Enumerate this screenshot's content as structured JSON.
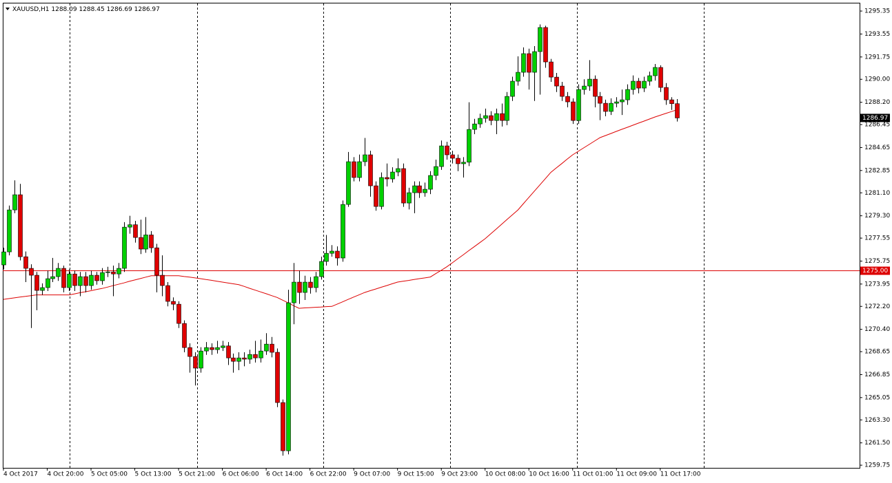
{
  "chart_data": {
    "type": "candlestick",
    "symbol": "XAUUSD,H1",
    "up_color": "#00d000",
    "down_color": "#e00000",
    "wick_color": "#000000",
    "ylim": [
      1259.54,
      1296.0
    ],
    "yticks": [
      1295.35,
      1293.55,
      1291.75,
      {
        "value": 1290,
        "label": "1290.00"
      },
      {
        "value": 1288.2,
        "label": "1288.20"
      },
      1286.45,
      1284.65,
      1282.85,
      {
        "value": 1281.1,
        "label": "1281.10"
      },
      {
        "value": 1279.3,
        "label": "1279.30"
      },
      1277.55,
      1275.75,
      1273.95,
      {
        "value": 1272.2,
        "label": "1272.20"
      },
      {
        "value": 1270.4,
        "label": "1270.40"
      },
      1268.65,
      1266.85,
      1265.05,
      {
        "value": 1263.3,
        "label": "1263.30"
      },
      {
        "value": 1261.5,
        "label": "1261.50"
      },
      1259.75
    ],
    "categories": [
      "4 Oct 2017",
      null,
      null,
      null,
      null,
      null,
      null,
      null,
      "4 Oct 20:00",
      null,
      null,
      null,
      null,
      null,
      null,
      null,
      "5 Oct 05:00",
      null,
      null,
      null,
      null,
      null,
      null,
      null,
      "5 Oct 13:00",
      null,
      null,
      null,
      null,
      null,
      null,
      null,
      "5 Oct 21:00",
      null,
      null,
      null,
      null,
      null,
      null,
      null,
      "6 Oct 06:00",
      null,
      null,
      null,
      null,
      null,
      null,
      null,
      "6 Oct 14:00",
      null,
      null,
      null,
      null,
      null,
      null,
      null,
      "6 Oct 22:00",
      null,
      null,
      null,
      null,
      null,
      null,
      null,
      "9 Oct 07:00",
      null,
      null,
      null,
      null,
      null,
      null,
      null,
      "9 Oct 15:00",
      null,
      null,
      null,
      null,
      null,
      null,
      null,
      "9 Oct 23:00",
      null,
      null,
      null,
      null,
      null,
      null,
      null,
      "10 Oct 08:00",
      null,
      null,
      null,
      null,
      null,
      null,
      null,
      "10 Oct 16:00",
      null,
      null,
      null,
      null,
      null,
      null,
      null,
      "11 Oct 01:00",
      null,
      null,
      null,
      null,
      null,
      null,
      null,
      "11 Oct 09:00",
      null,
      null,
      null,
      null,
      null,
      null,
      null,
      "11 Oct 17:00",
      null,
      null,
      null
    ],
    "open": [
      1275.45,
      1276.47,
      1279.76,
      1280.95,
      1276.09,
      1275.18,
      1274.64,
      1273.45,
      1273.67,
      1274.37,
      1274.53,
      1275.18,
      1273.67,
      1274.74,
      1273.83,
      1274.53,
      1273.83,
      1274.64,
      1274.21,
      1274.85,
      1274.9,
      1274.74,
      1275.18,
      1278.41,
      1278.6,
      1277.6,
      1276.69,
      1277.8,
      1276.79,
      1274.64,
      1273.83,
      1272.59,
      1272.37,
      1270.86,
      1268.97,
      1268.27,
      1267.36,
      1268.7,
      1268.97,
      1268.81,
      1268.97,
      1269.1,
      1268.16,
      1267.89,
      1268.16,
      1268.06,
      1268.43,
      1268.16,
      1268.7,
      1269.24,
      1268.6,
      1264.66,
      1260.88,
      1272.48,
      1274.1,
      1273.29,
      1274.1,
      1273.67,
      1274.53,
      1275.72,
      1276.36,
      1276.53,
      1275.99,
      1280.19,
      1283.54,
      1282.3,
      1283.54,
      1284.08,
      1281.65,
      1280.03,
      1282.3,
      1282.19,
      1282.73,
      1283.0,
      1280.3,
      1281.11,
      1281.65,
      1281.11,
      1281.38,
      1282.46,
      1283.16,
      1284.78,
      1284.08,
      1283.81,
      1283.38,
      1283.5,
      1286.07,
      1286.5,
      1286.94,
      1287.15,
      1286.77,
      1287.31,
      1286.77,
      1288.66,
      1289.85,
      1290.55,
      1292.01,
      1290.55,
      1292.17,
      1294.06,
      1291.36,
      1290.17,
      1289.47,
      1288.66,
      1288.23,
      1286.77,
      1289.2,
      1289.47,
      1290.01,
      1288.66,
      1288.12,
      1287.48,
      1288.12,
      1288.23,
      1288.39,
      1289.2,
      1289.85,
      1289.31,
      1289.85,
      1290.28,
      1290.93,
      1289.36,
      1288.39,
      1288.09
    ],
    "high": [
      1276.8,
      1280.1,
      1282.08,
      1281.8,
      1276.5,
      1275.5,
      1274.9,
      1274.0,
      1275.0,
      1276.0,
      1275.6,
      1275.4,
      1275.1,
      1275.0,
      1274.9,
      1274.9,
      1275.0,
      1274.9,
      1275.2,
      1275.3,
      1275.4,
      1275.6,
      1278.8,
      1279.3,
      1278.9,
      1279.0,
      1279.2,
      1278.1,
      1277.1,
      1276.2,
      1274.1,
      1272.9,
      1272.6,
      1271.1,
      1269.3,
      1268.6,
      1269.0,
      1269.4,
      1269.3,
      1269.5,
      1269.5,
      1269.4,
      1268.5,
      1268.6,
      1268.6,
      1268.8,
      1269.5,
      1269.6,
      1270.1,
      1269.8,
      1268.9,
      1264.9,
      1273.5,
      1275.6,
      1275.0,
      1274.6,
      1274.5,
      1274.9,
      1276.1,
      1277.8,
      1277.0,
      1276.9,
      1280.5,
      1284.3,
      1283.9,
      1284.1,
      1285.4,
      1284.4,
      1282.0,
      1282.7,
      1283.4,
      1283.1,
      1283.8,
      1283.4,
      1281.5,
      1282.0,
      1282.0,
      1281.9,
      1282.8,
      1283.7,
      1285.2,
      1285.1,
      1284.4,
      1284.1,
      1283.9,
      1288.2,
      1286.9,
      1287.3,
      1287.7,
      1287.5,
      1287.7,
      1288.1,
      1289.0,
      1290.2,
      1291.8,
      1292.5,
      1292.4,
      1292.6,
      1294.3,
      1294.2,
      1291.6,
      1290.5,
      1289.8,
      1289.0,
      1288.5,
      1289.6,
      1290.0,
      1291.5,
      1290.3,
      1289.0,
      1288.4,
      1288.5,
      1288.6,
      1289.2,
      1289.6,
      1290.3,
      1290.1,
      1290.2,
      1290.6,
      1291.2,
      1291.1,
      1289.7,
      1288.6,
      1288.45
    ],
    "low": [
      1275.1,
      1276.2,
      1279.5,
      1275.8,
      1274.1,
      1270.5,
      1271.9,
      1273.1,
      1273.4,
      1274.1,
      1274.2,
      1273.3,
      1273.4,
      1273.4,
      1273.0,
      1273.3,
      1273.5,
      1273.9,
      1273.9,
      1274.5,
      1273.0,
      1274.4,
      1274.9,
      1277.9,
      1277.2,
      1276.3,
      1276.4,
      1276.4,
      1273.3,
      1273.0,
      1272.2,
      1271.9,
      1270.5,
      1268.6,
      1267.0,
      1266.0,
      1267.0,
      1268.4,
      1268.4,
      1268.5,
      1268.7,
      1267.6,
      1267.0,
      1267.2,
      1267.5,
      1267.7,
      1267.8,
      1267.8,
      1268.4,
      1268.2,
      1264.3,
      1260.5,
      1260.6,
      1270.8,
      1272.4,
      1272.7,
      1273.2,
      1273.3,
      1274.3,
      1275.4,
      1276.1,
      1275.4,
      1275.7,
      1280.0,
      1282.0,
      1282.0,
      1283.2,
      1280.8,
      1279.7,
      1279.8,
      1281.6,
      1281.9,
      1282.4,
      1280.0,
      1279.8,
      1279.5,
      1280.7,
      1280.8,
      1281.0,
      1282.1,
      1282.9,
      1283.7,
      1283.4,
      1282.8,
      1282.3,
      1283.2,
      1285.7,
      1286.2,
      1286.6,
      1286.4,
      1285.7,
      1286.3,
      1286.4,
      1288.3,
      1289.5,
      1290.2,
      1289.2,
      1288.3,
      1288.8,
      1290.9,
      1289.8,
      1289.0,
      1288.3,
      1287.8,
      1286.5,
      1286.5,
      1288.8,
      1289.1,
      1287.8,
      1286.8,
      1287.1,
      1287.2,
      1287.8,
      1287.2,
      1288.0,
      1288.8,
      1288.9,
      1289.0,
      1289.5,
      1289.9,
      1289.0,
      1288.0,
      1287.6,
      1286.69
    ],
    "close": [
      1276.47,
      1279.76,
      1280.95,
      1276.09,
      1275.18,
      1274.64,
      1273.45,
      1273.67,
      1274.37,
      1274.53,
      1275.18,
      1273.67,
      1274.74,
      1273.83,
      1274.53,
      1273.83,
      1274.64,
      1274.21,
      1274.85,
      1274.9,
      1274.74,
      1275.18,
      1278.41,
      1278.6,
      1277.6,
      1276.69,
      1277.8,
      1276.79,
      1274.64,
      1273.83,
      1272.59,
      1272.37,
      1270.86,
      1268.97,
      1268.27,
      1267.36,
      1268.7,
      1268.97,
      1268.81,
      1268.97,
      1269.1,
      1268.16,
      1267.89,
      1268.16,
      1268.06,
      1268.43,
      1268.16,
      1268.7,
      1269.24,
      1268.6,
      1264.66,
      1260.88,
      1272.48,
      1274.1,
      1273.29,
      1274.1,
      1273.67,
      1274.53,
      1275.72,
      1276.36,
      1276.53,
      1275.99,
      1280.19,
      1283.54,
      1282.3,
      1283.54,
      1284.08,
      1281.65,
      1280.03,
      1282.3,
      1282.19,
      1282.73,
      1283.0,
      1280.3,
      1281.11,
      1281.65,
      1281.11,
      1281.38,
      1282.46,
      1283.16,
      1284.78,
      1284.08,
      1283.81,
      1283.38,
      1283.5,
      1286.07,
      1286.5,
      1286.94,
      1287.15,
      1286.77,
      1287.31,
      1286.77,
      1288.66,
      1289.85,
      1290.55,
      1292.01,
      1290.55,
      1292.17,
      1294.06,
      1291.36,
      1290.17,
      1289.47,
      1288.66,
      1288.23,
      1286.77,
      1289.2,
      1289.47,
      1290.01,
      1288.66,
      1288.12,
      1287.48,
      1288.12,
      1288.23,
      1288.39,
      1289.2,
      1289.85,
      1289.31,
      1289.85,
      1290.28,
      1290.93,
      1289.36,
      1288.39,
      1288.09,
      1286.97
    ],
    "ma": {
      "color": "#dd0000",
      "values": [
        1272.75,
        1272.81,
        1272.87,
        1272.93,
        1272.98,
        1273.04,
        1273.1,
        1273.1,
        1273.1,
        1273.1,
        1273.1,
        1273.1,
        1273.1,
        1273.18,
        1273.27,
        1273.35,
        1273.43,
        1273.52,
        1273.6,
        1273.71,
        1273.82,
        1273.93,
        1274.04,
        1274.16,
        1274.27,
        1274.38,
        1274.49,
        1274.6,
        1274.6,
        1274.6,
        1274.6,
        1274.6,
        1274.6,
        1274.54,
        1274.49,
        1274.43,
        1274.37,
        1274.3,
        1274.24,
        1274.17,
        1274.1,
        1274.04,
        1273.97,
        1273.9,
        1273.76,
        1273.61,
        1273.47,
        1273.33,
        1273.19,
        1273.04,
        1272.9,
        1272.69,
        1272.48,
        1272.26,
        1272.05,
        1272.08,
        1272.1,
        1272.13,
        1272.15,
        1272.18,
        1272.2,
        1272.38,
        1272.56,
        1272.75,
        1272.93,
        1273.11,
        1273.29,
        1273.43,
        1273.56,
        1273.7,
        1273.83,
        1273.97,
        1274.1,
        1274.17,
        1274.23,
        1274.3,
        1274.37,
        1274.43,
        1274.5,
        1274.77,
        1275.03,
        1275.3,
        1275.61,
        1275.93,
        1276.24,
        1276.56,
        1276.87,
        1277.19,
        1277.5,
        1277.88,
        1278.25,
        1278.63,
        1279.01,
        1279.38,
        1279.76,
        1280.25,
        1280.74,
        1281.23,
        1281.72,
        1282.21,
        1282.7,
        1283.05,
        1283.39,
        1283.74,
        1284.08,
        1284.35,
        1284.62,
        1284.89,
        1285.16,
        1285.43,
        1285.59,
        1285.75,
        1285.92,
        1286.08,
        1286.24,
        1286.4,
        1286.56,
        1286.72,
        1286.88,
        1287.04,
        1287.18,
        1287.32,
        1287.46,
        1287.6
      ]
    },
    "hline": {
      "value": 1275,
      "label": "1275.00",
      "color": "#dd0000"
    }
  }
}
